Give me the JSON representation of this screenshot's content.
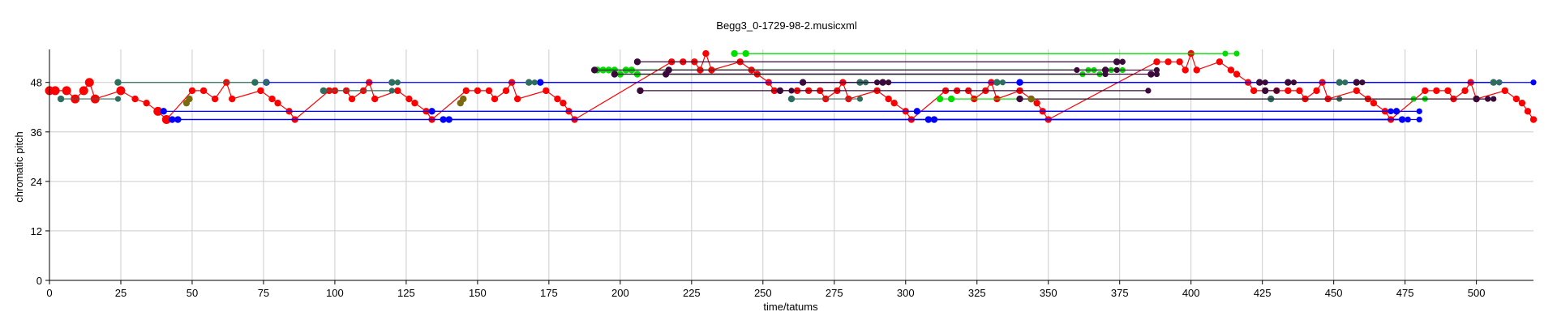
{
  "chart_data": {
    "type": "scatter",
    "title": "Begg3_0-1729-98-2.musicxml",
    "xlabel": "time/tatums",
    "ylabel": "chromatic pitch",
    "xlim": [
      0,
      520
    ],
    "ylim": [
      0,
      56
    ],
    "xticks": [
      "0",
      "25",
      "50",
      "75",
      "100",
      "125",
      "150",
      "175",
      "200",
      "225",
      "250",
      "275",
      "300",
      "325",
      "350",
      "375",
      "400",
      "425",
      "450",
      "475",
      "500"
    ],
    "yticks": [
      "0",
      "12",
      "24",
      "36",
      "48"
    ],
    "grid": true,
    "colors": {
      "red": "#ff0000",
      "blue": "#0000ff",
      "green": "#00dd00",
      "teal": "#2e6e5e",
      "purple": "#3a0a3a",
      "olive": "#7a6a10",
      "grid": "#cccccc"
    },
    "series": [
      {
        "color": "red",
        "mode": "line",
        "points": [
          [
            0,
            46
          ],
          [
            2,
            46
          ],
          [
            6,
            46
          ],
          [
            9,
            44
          ],
          [
            12,
            46
          ],
          [
            14,
            48
          ],
          [
            16,
            44
          ],
          [
            25,
            46
          ],
          [
            30,
            44
          ],
          [
            34,
            43
          ],
          [
            38,
            41
          ],
          [
            41,
            39
          ],
          [
            50,
            46
          ],
          [
            54,
            46
          ],
          [
            58,
            44
          ],
          [
            62,
            48
          ],
          [
            64,
            44
          ],
          [
            74,
            46
          ],
          [
            78,
            44
          ],
          [
            80,
            43
          ],
          [
            84,
            41
          ],
          [
            86,
            39
          ],
          [
            98,
            46
          ],
          [
            100,
            46
          ],
          [
            104,
            46
          ],
          [
            106,
            44
          ],
          [
            110,
            46
          ],
          [
            112,
            48
          ],
          [
            114,
            44
          ],
          [
            122,
            46
          ],
          [
            126,
            44
          ],
          [
            128,
            43
          ],
          [
            132,
            41
          ],
          [
            134,
            39
          ],
          [
            146,
            46
          ],
          [
            150,
            46
          ],
          [
            154,
            46
          ],
          [
            156,
            44
          ],
          [
            160,
            46
          ],
          [
            162,
            48
          ],
          [
            164,
            44
          ],
          [
            174,
            46
          ],
          [
            178,
            44
          ],
          [
            180,
            43
          ],
          [
            182,
            41
          ],
          [
            184,
            39
          ],
          [
            218,
            53
          ],
          [
            222,
            53
          ],
          [
            226,
            53
          ],
          [
            228,
            51
          ],
          [
            230,
            55
          ],
          [
            232,
            51
          ],
          [
            242,
            53
          ],
          [
            246,
            51
          ],
          [
            248,
            50
          ],
          [
            252,
            48
          ],
          [
            254,
            46
          ],
          [
            262,
            46
          ],
          [
            266,
            46
          ],
          [
            270,
            46
          ],
          [
            272,
            44
          ],
          [
            276,
            46
          ],
          [
            278,
            48
          ],
          [
            280,
            44
          ],
          [
            290,
            46
          ],
          [
            294,
            44
          ],
          [
            296,
            43
          ],
          [
            300,
            41
          ],
          [
            302,
            39
          ],
          [
            314,
            46
          ],
          [
            318,
            46
          ],
          [
            322,
            46
          ],
          [
            324,
            44
          ],
          [
            328,
            46
          ],
          [
            330,
            48
          ],
          [
            332,
            44
          ],
          [
            340,
            46
          ],
          [
            344,
            44
          ],
          [
            346,
            43
          ],
          [
            348,
            41
          ],
          [
            350,
            39
          ],
          [
            388,
            53
          ],
          [
            392,
            53
          ],
          [
            396,
            53
          ],
          [
            398,
            51
          ],
          [
            400,
            55
          ],
          [
            402,
            51
          ],
          [
            410,
            53
          ],
          [
            414,
            51
          ],
          [
            416,
            50
          ],
          [
            420,
            48
          ],
          [
            422,
            46
          ],
          [
            430,
            46
          ],
          [
            434,
            46
          ],
          [
            438,
            46
          ],
          [
            440,
            44
          ],
          [
            444,
            46
          ],
          [
            446,
            48
          ],
          [
            448,
            44
          ],
          [
            458,
            46
          ],
          [
            462,
            44
          ],
          [
            464,
            43
          ],
          [
            468,
            41
          ],
          [
            470,
            39
          ],
          [
            482,
            46
          ],
          [
            486,
            46
          ],
          [
            490,
            46
          ],
          [
            492,
            44
          ],
          [
            496,
            46
          ],
          [
            498,
            48
          ],
          [
            500,
            44
          ],
          [
            510,
            46
          ],
          [
            514,
            44
          ],
          [
            516,
            43
          ],
          [
            518,
            41
          ],
          [
            520,
            39
          ]
        ]
      },
      {
        "color": "blue",
        "mode": "sustain",
        "points": [
          [
            76,
            48,
            520
          ],
          [
            40,
            41,
            470
          ],
          [
            43,
            39,
            474
          ],
          [
            45,
            39,
            476
          ],
          [
            134,
            41,
            470
          ],
          [
            138,
            39,
            474
          ],
          [
            140,
            39,
            476
          ],
          [
            172,
            48,
            508
          ],
          [
            304,
            41,
            470
          ],
          [
            308,
            39,
            474
          ],
          [
            310,
            39,
            476
          ],
          [
            340,
            48,
            508
          ],
          [
            472,
            41,
            480
          ],
          [
            474,
            39,
            480
          ]
        ]
      },
      {
        "color": "teal",
        "mode": "sustain",
        "points": [
          [
            24,
            48,
            72
          ],
          [
            72,
            48,
            76
          ],
          [
            4,
            44,
            24
          ],
          [
            96,
            46,
            120
          ],
          [
            120,
            48,
            122
          ],
          [
            168,
            48,
            170
          ],
          [
            260,
            44,
            284
          ],
          [
            284,
            48,
            286
          ],
          [
            332,
            48,
            334
          ],
          [
            428,
            44,
            452
          ],
          [
            452,
            48,
            454
          ],
          [
            506,
            48,
            508
          ]
        ]
      },
      {
        "color": "green",
        "mode": "sustain",
        "points": [
          [
            192,
            51,
            370
          ],
          [
            194,
            51,
            372
          ],
          [
            196,
            51,
            374
          ],
          [
            198,
            51,
            376
          ],
          [
            200,
            50,
            362
          ],
          [
            202,
            51,
            364
          ],
          [
            204,
            51,
            366
          ],
          [
            206,
            50,
            368
          ],
          [
            240,
            55,
            412
          ],
          [
            244,
            55,
            416
          ],
          [
            312,
            44,
            478
          ],
          [
            316,
            44,
            482
          ]
        ]
      },
      {
        "color": "purple",
        "mode": "sustain",
        "points": [
          [
            191,
            51,
            360
          ],
          [
            198,
            50,
            370
          ],
          [
            206,
            53,
            376
          ],
          [
            207,
            46,
            385
          ],
          [
            216,
            50,
            386
          ],
          [
            217,
            51,
            388
          ],
          [
            256,
            46,
            260
          ],
          [
            264,
            48,
            290
          ],
          [
            292,
            48,
            294
          ],
          [
            340,
            44,
            504
          ],
          [
            344,
            44,
            506
          ],
          [
            370,
            51,
            374
          ],
          [
            374,
            53,
            376
          ],
          [
            386,
            50,
            388
          ],
          [
            424,
            48,
            426
          ],
          [
            426,
            46,
            430
          ],
          [
            434,
            48,
            436
          ],
          [
            458,
            48,
            460
          ],
          [
            500,
            44,
            504
          ]
        ]
      },
      {
        "color": "olive",
        "mode": "points",
        "points": [
          [
            48,
            43
          ],
          [
            49,
            44
          ],
          [
            144,
            43
          ],
          [
            145,
            44
          ],
          [
            344,
            44
          ]
        ]
      }
    ]
  }
}
